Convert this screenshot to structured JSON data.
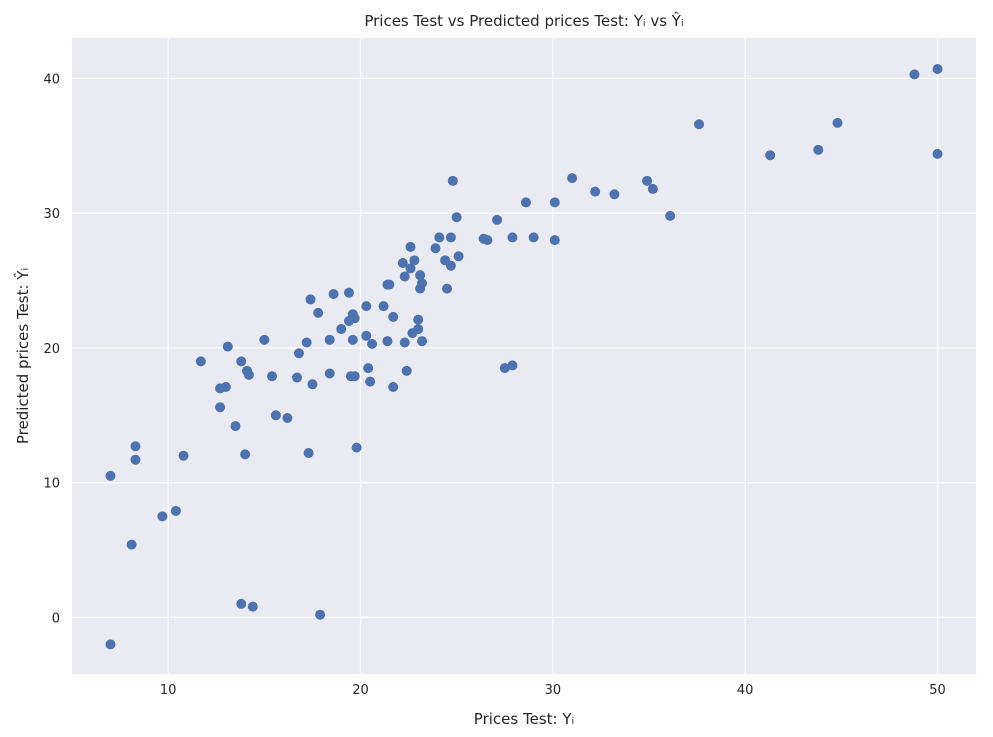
{
  "chart_data": {
    "type": "scatter",
    "title": "Prices Test vs Predicted prices Test: Yᵢ vs Ŷᵢ",
    "xlabel": "Prices Test: Yᵢ",
    "ylabel": "Predicted prices Test: Ŷᵢ",
    "xlim": [
      5,
      52
    ],
    "ylim": [
      -4.2,
      43
    ],
    "xticks": [
      10,
      20,
      30,
      40,
      50
    ],
    "yticks": [
      0,
      10,
      20,
      30,
      40
    ],
    "grid": true,
    "background": "#eaeaf2",
    "marker_color": "#4c72b0",
    "points": [
      [
        7.0,
        10.5
      ],
      [
        7.0,
        -2.0
      ],
      [
        8.1,
        5.4
      ],
      [
        8.3,
        12.7
      ],
      [
        8.3,
        11.7
      ],
      [
        9.7,
        7.5
      ],
      [
        10.4,
        7.9
      ],
      [
        10.8,
        12.0
      ],
      [
        11.7,
        19.0
      ],
      [
        12.7,
        17.0
      ],
      [
        12.7,
        15.6
      ],
      [
        13.0,
        17.1
      ],
      [
        13.1,
        20.1
      ],
      [
        13.5,
        14.2
      ],
      [
        13.8,
        19.0
      ],
      [
        13.8,
        1.0
      ],
      [
        14.0,
        12.1
      ],
      [
        14.1,
        18.3
      ],
      [
        14.2,
        18.0
      ],
      [
        14.4,
        0.8
      ],
      [
        15.0,
        20.6
      ],
      [
        15.4,
        17.9
      ],
      [
        15.6,
        15.0
      ],
      [
        16.2,
        14.8
      ],
      [
        16.7,
        17.8
      ],
      [
        16.8,
        19.6
      ],
      [
        17.2,
        20.4
      ],
      [
        17.3,
        12.2
      ],
      [
        17.4,
        23.6
      ],
      [
        17.5,
        17.3
      ],
      [
        17.8,
        22.6
      ],
      [
        17.9,
        0.2
      ],
      [
        18.4,
        20.6
      ],
      [
        18.4,
        18.1
      ],
      [
        18.6,
        24.0
      ],
      [
        19.0,
        21.4
      ],
      [
        19.4,
        24.1
      ],
      [
        19.4,
        22.0
      ],
      [
        19.5,
        17.9
      ],
      [
        19.6,
        22.5
      ],
      [
        19.6,
        20.6
      ],
      [
        19.7,
        17.9
      ],
      [
        19.7,
        22.2
      ],
      [
        19.8,
        12.6
      ],
      [
        20.3,
        23.1
      ],
      [
        20.3,
        20.9
      ],
      [
        20.4,
        18.5
      ],
      [
        20.5,
        17.5
      ],
      [
        20.6,
        20.3
      ],
      [
        21.2,
        23.1
      ],
      [
        21.4,
        24.7
      ],
      [
        21.4,
        20.5
      ],
      [
        21.5,
        24.7
      ],
      [
        21.7,
        22.3
      ],
      [
        21.7,
        17.1
      ],
      [
        22.2,
        26.3
      ],
      [
        22.3,
        25.3
      ],
      [
        22.3,
        20.4
      ],
      [
        22.4,
        18.3
      ],
      [
        22.6,
        25.9
      ],
      [
        22.6,
        27.5
      ],
      [
        22.7,
        21.1
      ],
      [
        22.8,
        26.5
      ],
      [
        23.0,
        22.1
      ],
      [
        23.0,
        21.4
      ],
      [
        23.1,
        25.4
      ],
      [
        23.1,
        24.4
      ],
      [
        23.2,
        24.8
      ],
      [
        23.2,
        20.5
      ],
      [
        23.9,
        27.4
      ],
      [
        24.1,
        28.2
      ],
      [
        24.4,
        26.5
      ],
      [
        24.5,
        24.4
      ],
      [
        24.7,
        28.2
      ],
      [
        24.7,
        26.1
      ],
      [
        24.8,
        32.4
      ],
      [
        25.0,
        29.7
      ],
      [
        25.1,
        26.8
      ],
      [
        26.4,
        28.1
      ],
      [
        26.6,
        28.0
      ],
      [
        27.1,
        29.5
      ],
      [
        27.5,
        18.5
      ],
      [
        27.9,
        18.7
      ],
      [
        27.9,
        28.2
      ],
      [
        28.6,
        30.8
      ],
      [
        29.0,
        28.2
      ],
      [
        30.1,
        30.8
      ],
      [
        30.1,
        28.0
      ],
      [
        31.0,
        32.6
      ],
      [
        32.2,
        31.6
      ],
      [
        33.2,
        31.4
      ],
      [
        34.9,
        32.4
      ],
      [
        35.2,
        31.8
      ],
      [
        36.1,
        29.8
      ],
      [
        37.6,
        36.6
      ],
      [
        41.3,
        34.3
      ],
      [
        43.8,
        34.7
      ],
      [
        44.8,
        36.7
      ],
      [
        48.8,
        40.3
      ],
      [
        50.0,
        40.7
      ],
      [
        50.0,
        34.4
      ]
    ]
  }
}
